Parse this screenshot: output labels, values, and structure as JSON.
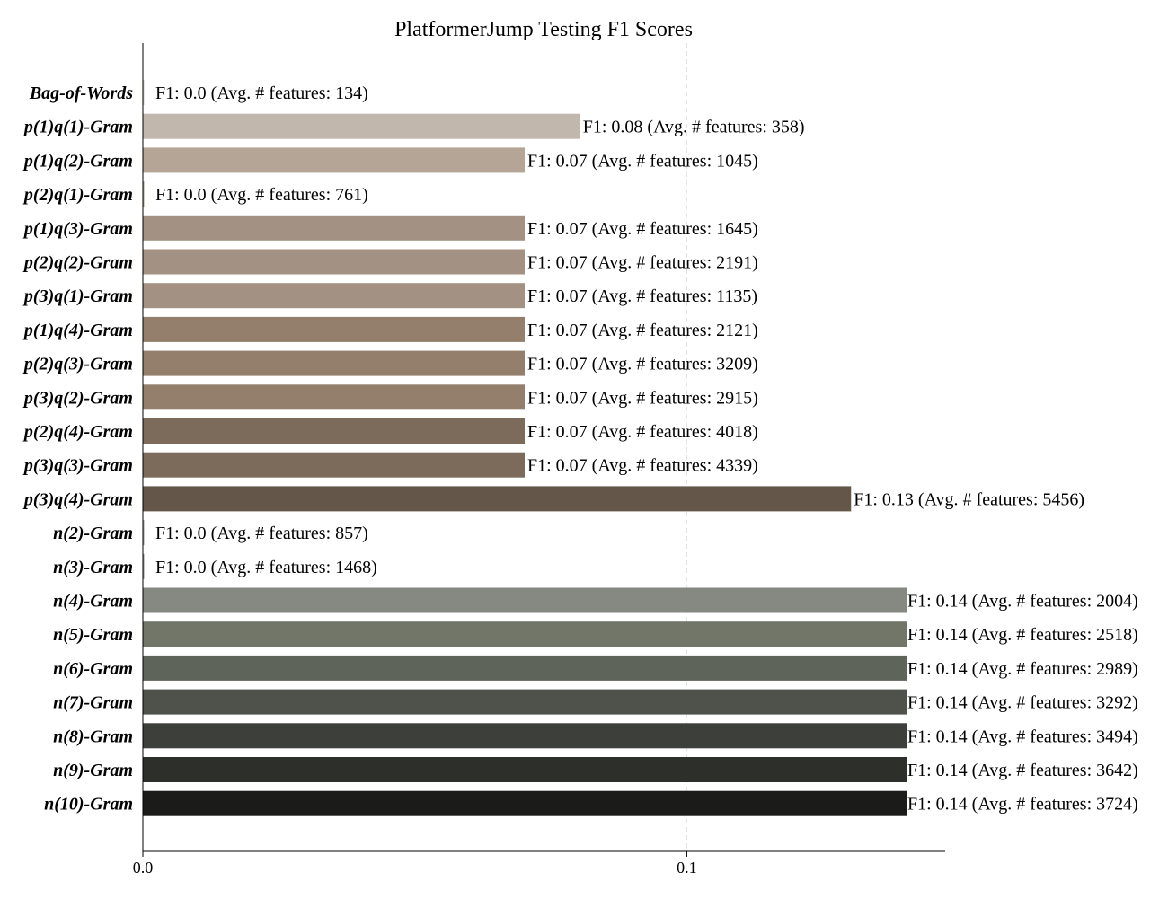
{
  "chart_data": {
    "type": "bar",
    "orientation": "horizontal",
    "title": "PlatformerJump Testing F1 Scores",
    "xlabel": "",
    "ylabel": "",
    "xlim": [
      0,
      0.1475
    ],
    "xticks": [
      0.0,
      0.1
    ],
    "xtick_labels": [
      "0.0",
      "0.1"
    ],
    "grid": "vertical dashed at x ticks",
    "legend": "none",
    "categories": [
      "Bag-of-Words",
      "p(1)q(1)-Gram",
      "p(1)q(2)-Gram",
      "p(2)q(1)-Gram",
      "p(1)q(3)-Gram",
      "p(2)q(2)-Gram",
      "p(3)q(1)-Gram",
      "p(1)q(4)-Gram",
      "p(2)q(3)-Gram",
      "p(3)q(2)-Gram",
      "p(2)q(4)-Gram",
      "p(3)q(3)-Gram",
      "p(3)q(4)-Gram",
      "n(2)-Gram",
      "n(3)-Gram",
      "n(4)-Gram",
      "n(5)-Gram",
      "n(6)-Gram",
      "n(7)-Gram",
      "n(8)-Gram",
      "n(9)-Gram",
      "n(10)-Gram"
    ],
    "values": [
      0.0,
      0.0804,
      0.0702,
      0.0,
      0.0702,
      0.0702,
      0.0702,
      0.0702,
      0.0702,
      0.0702,
      0.0702,
      0.0702,
      0.1302,
      0.0,
      0.0,
      0.1404,
      0.1404,
      0.1404,
      0.1404,
      0.1404,
      0.1404,
      0.1404
    ],
    "data_labels": [
      "F1: 0.0 (Avg. # features: 134)",
      "F1: 0.08 (Avg. # features: 358)",
      "F1: 0.07 (Avg. # features: 1045)",
      "F1: 0.0 (Avg. # features: 761)",
      "F1: 0.07 (Avg. # features: 1645)",
      "F1: 0.07 (Avg. # features: 2191)",
      "F1: 0.07 (Avg. # features: 1135)",
      "F1: 0.07 (Avg. # features: 2121)",
      "F1: 0.07 (Avg. # features: 3209)",
      "F1: 0.07 (Avg. # features: 2915)",
      "F1: 0.07 (Avg. # features: 4018)",
      "F1: 0.07 (Avg. # features: 4339)",
      "F1: 0.13 (Avg. # features: 5456)",
      "F1: 0.0 (Avg. # features: 857)",
      "F1: 0.0 (Avg. # features: 1468)",
      "F1: 0.14 (Avg. # features: 2004)",
      "F1: 0.14 (Avg. # features: 2518)",
      "F1: 0.14 (Avg. # features: 2989)",
      "F1: 0.14 (Avg. # features: 3292)",
      "F1: 0.14 (Avg. # features: 3494)",
      "F1: 0.14 (Avg. # features: 3642)",
      "F1: 0.14 (Avg. # features: 3724)"
    ],
    "colors": [
      "#d4cbc4",
      "#c2b7ad",
      "#b4a597",
      "#aa9a8c",
      "#a39283",
      "#a39283",
      "#a39283",
      "#937f6c",
      "#937f6c",
      "#937f6c",
      "#7c6b5b",
      "#7c6b5b",
      "#645749",
      "#9a9e96",
      "#8e928a",
      "#858981",
      "#717669",
      "#5f645b",
      "#4e524a",
      "#3d403a",
      "#2c2f2a",
      "#1b1c1a"
    ]
  }
}
